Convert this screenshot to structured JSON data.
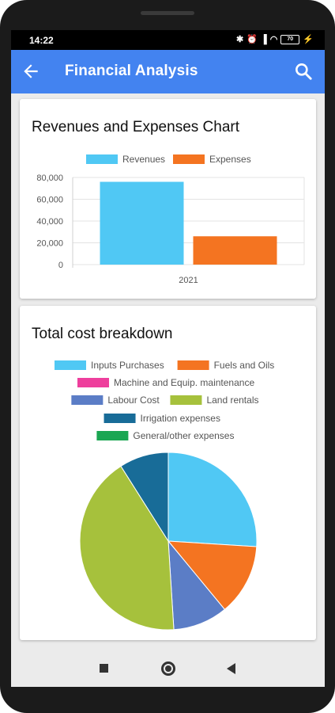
{
  "status_bar": {
    "time": "14:22",
    "battery": "70"
  },
  "app_bar": {
    "title": "Financial Analysis"
  },
  "revenue_card": {
    "title": "Revenues and Expenses Chart"
  },
  "cost_card": {
    "title": "Total cost breakdown"
  },
  "colors": {
    "app_bar": "#4383f0",
    "revenues": "#50c8f4",
    "expenses": "#f47421",
    "inputs": "#50c8f4",
    "fuels": "#f47421",
    "machine": "#ee3f9d",
    "labour": "#5b7dc6",
    "land": "#a6c13c",
    "irrigation": "#186c98",
    "general": "#1aa652"
  },
  "chart_data": [
    {
      "type": "bar",
      "categories": [
        "2021"
      ],
      "series": [
        {
          "name": "Revenues",
          "values": [
            76000
          ],
          "color": "#50c8f4"
        },
        {
          "name": "Expenses",
          "values": [
            26000
          ],
          "color": "#f47421"
        }
      ],
      "ylim": [
        0,
        80000
      ],
      "yticks": [
        "0",
        "20,000",
        "40,000",
        "60,000",
        "80,000"
      ],
      "ytick_values": [
        0,
        20000,
        40000,
        60000,
        80000
      ],
      "legend_position": "top",
      "grid": true
    },
    {
      "type": "pie",
      "labels": [
        "Inputs Purchases",
        "Fuels and Oils",
        "Machine and Equip. maintenance",
        "Labour Cost",
        "Land rentals",
        "Irrigation expenses",
        "General/other expenses"
      ],
      "values": [
        26,
        13,
        0,
        10,
        42,
        9,
        0
      ],
      "colors": [
        "#50c8f4",
        "#f47421",
        "#ee3f9d",
        "#5b7dc6",
        "#a6c13c",
        "#186c98",
        "#1aa652"
      ],
      "legend_position": "top"
    }
  ]
}
